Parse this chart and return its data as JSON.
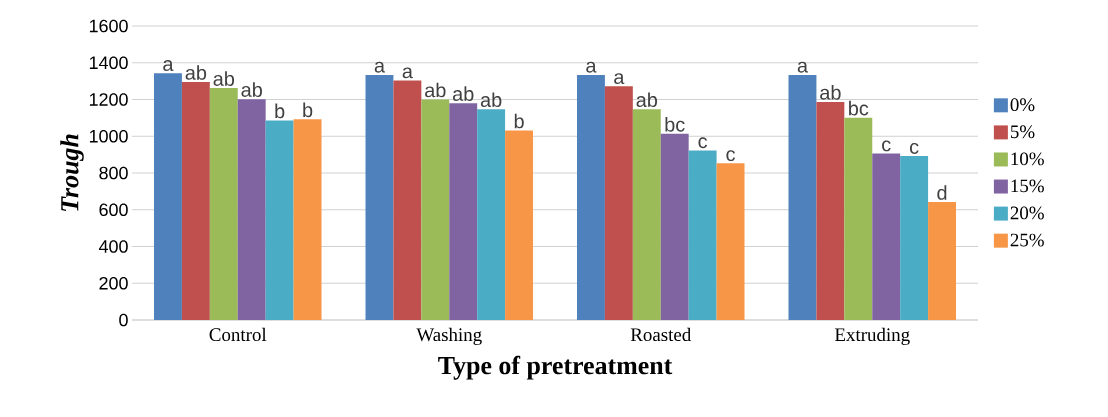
{
  "chart_data": {
    "type": "bar",
    "xlabel": "Type of pretreatment",
    "ylabel": "Trough",
    "categories": [
      "Control",
      "Washing",
      "Roasted",
      "Extruding"
    ],
    "series": [
      {
        "name": "0%",
        "color": "#4f81bd",
        "values": [
          1343,
          1334,
          1334,
          1334
        ],
        "value_labels": [
          "a",
          "a",
          "a",
          "a"
        ]
      },
      {
        "name": "5%",
        "color": "#c0504d",
        "values": [
          1295,
          1303,
          1272,
          1187
        ],
        "value_labels": [
          "ab",
          "a",
          "a",
          "ab"
        ]
      },
      {
        "name": "10%",
        "color": "#9bbb59",
        "values": [
          1262,
          1200,
          1147,
          1101
        ],
        "value_labels": [
          "ab",
          "ab",
          "ab",
          "bc"
        ]
      },
      {
        "name": "15%",
        "color": "#8064a2",
        "values": [
          1202,
          1180,
          1013,
          906
        ],
        "value_labels": [
          "ab",
          "ab",
          "bc",
          "c"
        ]
      },
      {
        "name": "20%",
        "color": "#4bacc6",
        "values": [
          1086,
          1147,
          923,
          892
        ],
        "value_labels": [
          "b",
          "ab",
          "c",
          "c"
        ]
      },
      {
        "name": "25%",
        "color": "#f79646",
        "values": [
          1092,
          1031,
          853,
          642
        ],
        "value_labels": [
          "b",
          "b",
          "c",
          "d"
        ]
      }
    ],
    "ylim": [
      0,
      1600
    ],
    "yticks": [
      0,
      200,
      400,
      600,
      800,
      1000,
      1200,
      1400,
      1600
    ],
    "grid": "y",
    "legend": "right"
  }
}
